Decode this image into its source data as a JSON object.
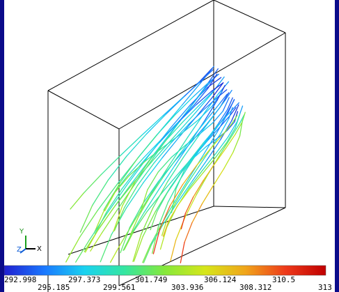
{
  "legend": {
    "colors": [
      "#2020d0",
      "#1a78ff",
      "#1ad2f0",
      "#35e6a0",
      "#86e83a",
      "#d6e61a",
      "#f0a51a",
      "#ee3a1a",
      "#c00000"
    ],
    "ticks_top": [
      "292.998",
      "297.373",
      "301.749",
      "306.124",
      "310.5"
    ],
    "ticks_bottom": [
      "295.185",
      "299.561",
      "303.936",
      "308.312",
      "313"
    ]
  },
  "axes": {
    "x_label": "X",
    "y_label": "Y",
    "z_label": "Z"
  }
}
